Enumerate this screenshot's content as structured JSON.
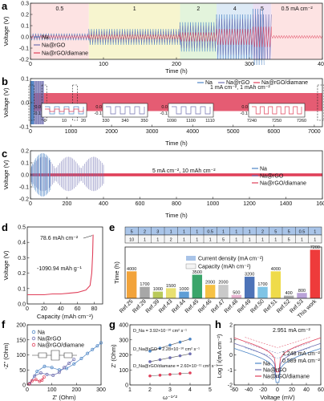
{
  "colors": {
    "na": "#4e86c6",
    "rgo": "#6f6fb0",
    "diamane": "#e0405a",
    "fitline_g": "#555555"
  },
  "chart_data": [
    {
      "panel": "a",
      "type": "line",
      "xlabel": "Time (h)",
      "ylabel": "Voltage (V)",
      "xlim": [
        0,
        400
      ],
      "ylim": [
        -0.2,
        0.3
      ],
      "xticks": [
        0,
        100,
        200,
        300,
        400
      ],
      "yticks": [
        -0.2,
        -0.1,
        0.0,
        0.1,
        0.2,
        0.3
      ],
      "xtick_labels": [
        "0",
        "100",
        "200",
        "300",
        "400"
      ],
      "ytick_labels": [
        "-0.2",
        "-0.1",
        "0.0",
        "0.1",
        "0.2",
        "0.3"
      ],
      "rate_regions": [
        {
          "label": "0.5",
          "x0": 0,
          "x1": 80,
          "color": "#fde3e3"
        },
        {
          "label": "1",
          "x0": 80,
          "x1": 205,
          "color": "#f7f5cf"
        },
        {
          "label": "2",
          "x0": 205,
          "x1": 255,
          "color": "#e3f4dc"
        },
        {
          "label": "4",
          "x0": 255,
          "x1": 305,
          "color": "#ddeaf6"
        },
        {
          "label": "5",
          "x0": 305,
          "x1": 330,
          "color": "#ebe0f3"
        },
        {
          "label": "0.5 mA cm⁻²",
          "x0": 330,
          "x1": 400,
          "color": "#fde3e3"
        }
      ],
      "series": [
        {
          "name": "Na",
          "amplitude": [
            0.03,
            0.07,
            0.13,
            0.2,
            0.25,
            0.03
          ]
        },
        {
          "name": "Na@rGO",
          "amplitude": [
            0.02,
            0.05,
            0.1,
            0.16,
            0.2,
            0.02
          ]
        },
        {
          "name": "Na@rGO/diamane",
          "amplitude": [
            0.012,
            0.02,
            0.04,
            0.07,
            0.09,
            0.012
          ]
        }
      ]
    },
    {
      "panel": "b",
      "type": "line",
      "xlabel": "Time (h)",
      "ylabel": "Voltage (V)",
      "xlim": [
        0,
        7200
      ],
      "ylim": [
        -0.1,
        0.1
      ],
      "xticks": [
        0,
        1000,
        2000,
        3000,
        4000,
        5000,
        6000,
        7000
      ],
      "yticks": [
        -0.1,
        0.0,
        0.1
      ],
      "xtick_labels": [
        "0",
        "1000",
        "2000",
        "3000",
        "4000",
        "5000",
        "6000",
        "7000"
      ],
      "ytick_labels": [
        "-0.1",
        "0.0",
        "0.1"
      ],
      "annotation": "1 mA cm⁻², 1 mAh cm⁻²",
      "legend": [
        "Na",
        "Na@rGO",
        "Na@rGO/diamane"
      ],
      "Na_end_h": 80,
      "Na_rGO_end_h": 330,
      "diamane_end_h": 7200,
      "insets": [
        {
          "xticks": [
            "0",
            "10",
            "20"
          ],
          "yticks": [
            "0.0",
            "-0.1"
          ]
        },
        {
          "xticks": [
            "330",
            "340",
            "350"
          ],
          "yticks": [
            "0.0",
            "-0.1"
          ]
        },
        {
          "xticks": [
            "1090",
            "1100",
            "1110"
          ],
          "yticks": [
            "0.0",
            "-0.1"
          ]
        },
        {
          "xticks": [
            "7240",
            "7250",
            "7260"
          ],
          "yticks": [
            "0.0",
            "-0.1"
          ]
        }
      ]
    },
    {
      "panel": "c",
      "type": "line",
      "xlabel": "Time (h)",
      "ylabel": "Voltage (V)",
      "xlim": [
        0,
        1600
      ],
      "ylim": [
        -0.2,
        0.2
      ],
      "xticks": [
        0,
        200,
        400,
        600,
        800,
        1000,
        1200,
        1400,
        1600
      ],
      "yticks": [
        -0.2,
        -0.1,
        0.0,
        0.1,
        0.2
      ],
      "xtick_labels": [
        "0",
        "200",
        "400",
        "600",
        "800",
        "1000",
        "1200",
        "1400",
        "1600"
      ],
      "ytick_labels": [
        "-0.2",
        "-0.1",
        "0.0",
        "0.1",
        "0.2"
      ],
      "annotation": "5 mA cm⁻², 10 mAh cm⁻²",
      "legend": [
        "Na",
        "Na@rGO",
        "Na@rGO/diamane"
      ],
      "Na_end_h": 110,
      "Na_rGO_end_h": 400,
      "diamane_end_h": 1600
    },
    {
      "panel": "d",
      "type": "line",
      "xlabel": "Capacity (mAh cm⁻²)",
      "ylabel": "Voltage (V)",
      "xlim": [
        0,
        90
      ],
      "ylim": [
        0,
        0.5
      ],
      "xticks": [
        0,
        20,
        40,
        60,
        80
      ],
      "yticks": [
        0.0,
        0.1,
        0.2,
        0.3,
        0.4,
        0.5
      ],
      "xtick_labels": [
        "0",
        "20",
        "40",
        "60",
        "80"
      ],
      "ytick_labels": [
        "0.0",
        "0.1",
        "0.2",
        "0.3",
        "0.4",
        "0.5"
      ],
      "annotations": [
        "78.6 mAh cm⁻²",
        "-1090.94 mAh g⁻¹"
      ],
      "x": [
        0,
        10,
        20,
        30,
        40,
        50,
        60,
        70,
        75,
        77,
        78,
        78.6
      ],
      "y": [
        0.06,
        0.06,
        0.06,
        0.065,
        0.065,
        0.07,
        0.075,
        0.09,
        0.12,
        0.2,
        0.32,
        0.45
      ]
    },
    {
      "panel": "e",
      "type": "bar",
      "ylabel": "Time (h)",
      "categories": [
        "Ref.25",
        "Ref.29",
        "Ref.39",
        "Ref.43",
        "Ref.44",
        "Ref.45",
        "Ref.46",
        "Ref.47",
        "Ref.48",
        "Ref.49",
        "Ref.50",
        "Ref.51",
        "Ref.52",
        "Ref.53",
        "This work"
      ],
      "values": [
        4000,
        1700,
        1000,
        1500,
        1000,
        3500,
        2000,
        2000,
        500,
        3200,
        1700,
        4000,
        400,
        800,
        7200
      ],
      "value_labels": [
        "4000",
        "1700",
        "1000",
        "1500",
        "1000",
        "3500",
        "2000",
        "2000",
        "500",
        "3200",
        "1700",
        "4000",
        "400",
        "800",
        "7200"
      ],
      "current_density": [
        "5",
        "2",
        "3",
        "1",
        "1",
        "1",
        "0.5",
        "1",
        "1",
        "1",
        "2",
        "5",
        "5",
        "0.5",
        "1"
      ],
      "capacity": [
        "10",
        "1",
        "1",
        "2",
        "1",
        "1",
        "1",
        "5",
        "1",
        "1",
        "1",
        "1",
        "5",
        "1",
        "1"
      ],
      "bar_colors": [
        "#f2a33a",
        "#a7a7a7",
        "#b9c95a",
        "#e8e070",
        "#5e9ed6",
        "#3aa56a",
        "#f6c143",
        "#c9c9c9",
        "#e8b3cf",
        "#4d73b8",
        "#7fc4e6",
        "#efdb4a",
        "#ababab",
        "#b9a2d8",
        "#ee3b3b"
      ],
      "legend": [
        "Current density (mA cm⁻²)",
        "Capacity (mAh cm⁻²)"
      ],
      "ylim": [
        0,
        7600
      ]
    },
    {
      "panel": "f",
      "type": "scatter",
      "xlabel": "Z' (Ohm)",
      "ylabel": "-Z'' (Ohm)",
      "xlim": [
        0,
        300
      ],
      "ylim": [
        0,
        200
      ],
      "xticks": [
        0,
        100,
        200,
        300
      ],
      "yticks": [
        0,
        50,
        100,
        150,
        200
      ],
      "xtick_labels": [
        "0",
        "100",
        "200",
        "300"
      ],
      "ytick_labels": [
        "0",
        "50",
        "100",
        "150",
        "200"
      ],
      "legend": [
        "Na",
        "Na@rGO",
        "Na@rGO/diamane"
      ],
      "series": [
        {
          "name": "Na",
          "x": [
            10,
            40,
            70,
            100,
            130,
            160,
            190,
            220,
            245,
            265,
            285,
            300
          ],
          "y": [
            5,
            45,
            62,
            58,
            50,
            55,
            70,
            88,
            105,
            118,
            130,
            140
          ]
        },
        {
          "name": "Na@rGO",
          "x": [
            10,
            30,
            55,
            80,
            105,
            130,
            150,
            170,
            190
          ],
          "y": [
            5,
            30,
            40,
            35,
            32,
            42,
            58,
            72,
            85
          ]
        },
        {
          "name": "Na@rGO/diamane",
          "x": [
            8,
            20,
            35,
            50,
            60,
            68
          ],
          "y": [
            3,
            14,
            18,
            12,
            16,
            26
          ]
        }
      ]
    },
    {
      "panel": "g",
      "type": "scatter",
      "xlabel": "ω⁻¹ᐟ²",
      "ylabel": "Z' (Ohm)",
      "xlim": [
        1,
        5
      ],
      "ylim": [
        0,
        400
      ],
      "xticks": [
        1,
        2,
        3,
        4,
        5
      ],
      "yticks": [
        0,
        100,
        200,
        300,
        400
      ],
      "xtick_labels": [
        "1",
        "2",
        "3",
        "4",
        "5"
      ],
      "ytick_labels": [
        "0",
        "100",
        "200",
        "300",
        "400"
      ],
      "annotations": [
        "D_Na = 3.92×10⁻¹⁰ cm² s⁻¹",
        "D_Na@rGO = 2.28×10⁻¹⁰ cm² s⁻¹",
        "D_Na@rGO/diamane = 2.60×10⁻¹¹ cm² s⁻¹"
      ],
      "series": [
        {
          "name": "Na",
          "x": [
            2.0,
            2.5,
            3.0,
            3.5,
            4.0
          ],
          "y": [
            225,
            245,
            265,
            285,
            305
          ]
        },
        {
          "name": "Na@rGO",
          "x": [
            2.0,
            2.5,
            3.0,
            3.5,
            4.0
          ],
          "y": [
            155,
            168,
            181,
            194,
            207
          ]
        },
        {
          "name": "Na@rGO/diamane",
          "x": [
            2.0,
            2.5,
            3.0,
            3.5,
            4.0
          ],
          "y": [
            60,
            65,
            70,
            75,
            80
          ]
        }
      ]
    },
    {
      "panel": "h",
      "type": "line",
      "xlabel": "Voltage (mV)",
      "ylabel": "Log | i(mA cm⁻²)",
      "xlim": [
        -60,
        60
      ],
      "ylim": [
        -2,
        2
      ],
      "xticks": [
        -60,
        -40,
        -20,
        0,
        20,
        40,
        60
      ],
      "yticks": [
        -2,
        -1,
        0,
        1,
        2
      ],
      "xtick_labels": [
        "-60",
        "-40",
        "-20",
        "0",
        "20",
        "40",
        "60"
      ],
      "ytick_labels": [
        "-2",
        "-1",
        "0",
        "1",
        "2"
      ],
      "legend": [
        "Na",
        "Na@rGO",
        "Na@rGO/diamane"
      ],
      "annotations": [
        "2.951 mA cm⁻²",
        "1.248 mA cm⁻²",
        "0.589 mA cm⁻²"
      ],
      "series": [
        {
          "name": "Na",
          "i0_log": -0.23
        },
        {
          "name": "Na@rGO",
          "i0_log": 0.1
        },
        {
          "name": "Na@rGO/diamane",
          "i0_log": 0.47
        }
      ]
    }
  ]
}
